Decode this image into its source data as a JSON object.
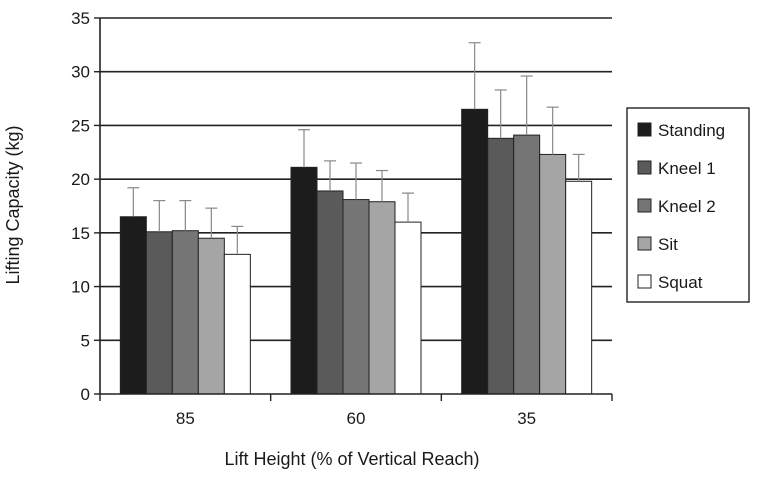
{
  "chart_data": {
    "type": "bar",
    "title": "",
    "xlabel": "Lift Height (% of Vertical Reach)",
    "ylabel": "Lifting Capacity (kg)",
    "categories": [
      "85",
      "60",
      "35"
    ],
    "ylim": [
      0,
      35
    ],
    "yticks": [
      0,
      5,
      10,
      15,
      20,
      25,
      30,
      35
    ],
    "grid": true,
    "legend_position": "right",
    "error_bars": "one-sided (upper)",
    "series": [
      {
        "name": "Standing",
        "color": "#1c1c1c",
        "values": [
          16.5,
          21.1,
          26.5
        ],
        "error_upper": [
          2.7,
          3.5,
          6.2
        ]
      },
      {
        "name": "Kneel 1",
        "color": "#5a5a5a",
        "values": [
          15.1,
          18.9,
          23.8
        ],
        "error_upper": [
          2.9,
          2.8,
          4.5
        ]
      },
      {
        "name": "Kneel 2",
        "color": "#757575",
        "values": [
          15.2,
          18.1,
          24.1
        ],
        "error_upper": [
          2.8,
          3.4,
          5.5
        ]
      },
      {
        "name": "Sit",
        "color": "#a5a5a5",
        "values": [
          14.5,
          17.9,
          22.3
        ],
        "error_upper": [
          2.8,
          2.9,
          4.4
        ]
      },
      {
        "name": "Squat",
        "color": "#ffffff",
        "values": [
          13.0,
          16.0,
          19.8
        ],
        "error_upper": [
          2.6,
          2.7,
          2.5
        ]
      }
    ]
  }
}
